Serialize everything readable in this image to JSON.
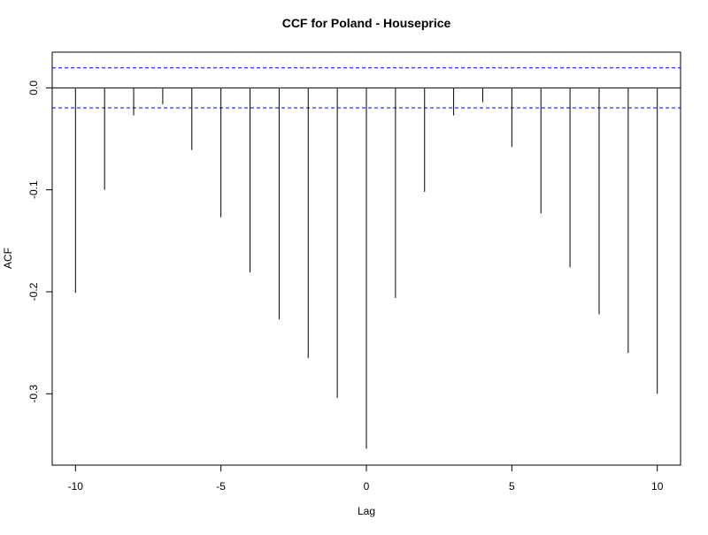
{
  "chart_data": {
    "type": "bar",
    "title": "CCF for Poland - Houseprice",
    "xlabel": "Lag",
    "ylabel": "ACF",
    "xlim": [
      -10.8,
      10.8
    ],
    "ylim": [
      -0.37,
      0.035
    ],
    "x_ticks": [
      -10,
      -5,
      0,
      5,
      10
    ],
    "x_tick_labels": [
      "-10",
      "-5",
      "0",
      "5",
      "10"
    ],
    "y_ticks": [
      -0.3,
      -0.2,
      -0.1,
      0.0
    ],
    "y_tick_labels": [
      "-0.3",
      "-0.2",
      "-0.1",
      "0.0"
    ],
    "lags": [
      -10,
      -9,
      -8,
      -7,
      -6,
      -5,
      -4,
      -3,
      -2,
      -1,
      0,
      1,
      2,
      3,
      4,
      5,
      6,
      7,
      8,
      9,
      10
    ],
    "values": [
      -0.201,
      -0.1,
      -0.027,
      -0.016,
      -0.061,
      -0.127,
      -0.181,
      -0.227,
      -0.265,
      -0.304,
      -0.354,
      -0.206,
      -0.102,
      -0.027,
      -0.014,
      -0.058,
      -0.123,
      -0.176,
      -0.222,
      -0.26,
      -0.3
    ],
    "confidence_bounds": [
      0.0196,
      -0.0196
    ],
    "zero_line": 0,
    "colors": {
      "bars": "#000000",
      "confidence": "#0000ff",
      "frame": "#000000"
    },
    "grid": false
  }
}
